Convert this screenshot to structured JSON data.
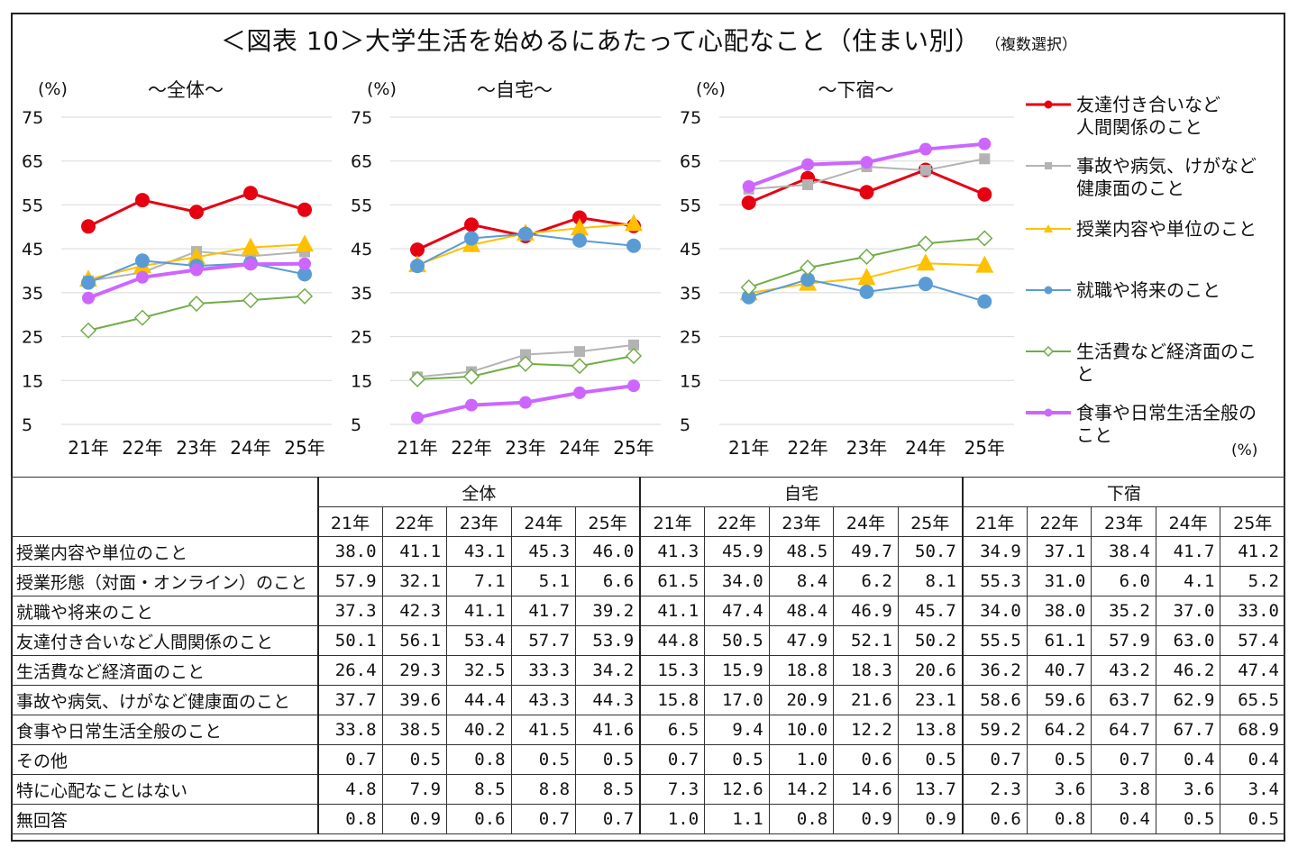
{
  "title": "＜図表 10＞大学生活を始めるにあたって心配なこと（住まい別）",
  "subtitle": "（複数選択）",
  "chart_data": [
    {
      "type": "line",
      "title": "～全体～",
      "ylabel": "(%)",
      "ylim": [
        5,
        75
      ],
      "yticks": [
        75,
        65,
        55,
        45,
        35,
        25,
        15,
        5
      ],
      "categories": [
        "21年",
        "22年",
        "23年",
        "24年",
        "25年"
      ],
      "series": [
        {
          "name": "友達付き合いなど人間関係のこと",
          "values": [
            50.1,
            56.1,
            53.4,
            57.7,
            53.9
          ]
        },
        {
          "name": "事故や病気、けがなど健康面のこと",
          "values": [
            37.7,
            39.6,
            44.4,
            43.3,
            44.3
          ]
        },
        {
          "name": "授業内容や単位のこと",
          "values": [
            38.0,
            41.1,
            43.1,
            45.3,
            46.0
          ]
        },
        {
          "name": "就職や将来のこと",
          "values": [
            37.3,
            42.3,
            41.1,
            41.7,
            39.2
          ]
        },
        {
          "name": "生活費など経済面のこと",
          "values": [
            26.4,
            29.3,
            32.5,
            33.3,
            34.2
          ]
        },
        {
          "name": "食事や日常生活全般のこと",
          "values": [
            33.8,
            38.5,
            40.2,
            41.5,
            41.6
          ]
        }
      ]
    },
    {
      "type": "line",
      "title": "～自宅～",
      "ylabel": "(%)",
      "ylim": [
        5,
        75
      ],
      "yticks": [
        75,
        65,
        55,
        45,
        35,
        25,
        15,
        5
      ],
      "categories": [
        "21年",
        "22年",
        "23年",
        "24年",
        "25年"
      ],
      "series": [
        {
          "name": "友達付き合いなど人間関係のこと",
          "values": [
            44.8,
            50.5,
            47.9,
            52.1,
            50.2
          ]
        },
        {
          "name": "事故や病気、けがなど健康面のこと",
          "values": [
            15.8,
            17.0,
            20.9,
            21.6,
            23.1
          ]
        },
        {
          "name": "授業内容や単位のこと",
          "values": [
            41.3,
            45.9,
            48.5,
            49.7,
            50.7
          ]
        },
        {
          "name": "就職や将来のこと",
          "values": [
            41.1,
            47.4,
            48.4,
            46.9,
            45.7
          ]
        },
        {
          "name": "生活費など経済面のこと",
          "values": [
            15.3,
            15.9,
            18.8,
            18.3,
            20.6
          ]
        },
        {
          "name": "食事や日常生活全般のこと",
          "values": [
            6.5,
            9.4,
            10.0,
            12.2,
            13.8
          ]
        }
      ]
    },
    {
      "type": "line",
      "title": "～下宿～",
      "ylabel": "(%)",
      "ylim": [
        5,
        75
      ],
      "yticks": [
        75,
        65,
        55,
        45,
        35,
        25,
        15,
        5
      ],
      "categories": [
        "21年",
        "22年",
        "23年",
        "24年",
        "25年"
      ],
      "series": [
        {
          "name": "友達付き合いなど人間関係のこと",
          "values": [
            55.5,
            61.1,
            57.9,
            63.0,
            57.4
          ]
        },
        {
          "name": "事故や病気、けがなど健康面のこと",
          "values": [
            58.6,
            59.6,
            63.7,
            62.9,
            65.5
          ]
        },
        {
          "name": "授業内容や単位のこと",
          "values": [
            34.9,
            37.1,
            38.4,
            41.7,
            41.2
          ]
        },
        {
          "name": "就職や将来のこと",
          "values": [
            34.0,
            38.0,
            35.2,
            37.0,
            33.0
          ]
        },
        {
          "name": "生活費など経済面のこと",
          "values": [
            36.2,
            40.7,
            43.2,
            46.2,
            47.4
          ]
        },
        {
          "name": "食事や日常生活全般のこと",
          "values": [
            59.2,
            64.2,
            64.7,
            67.7,
            68.9
          ]
        }
      ]
    }
  ],
  "series_styles": [
    {
      "color": "#e60012",
      "marker": "circle",
      "width": 3
    },
    {
      "color": "#b3b3b3",
      "marker": "square",
      "width": 2
    },
    {
      "color": "#ffc000",
      "marker": "triangle",
      "width": 2
    },
    {
      "color": "#5b9bd5",
      "marker": "circle",
      "width": 2
    },
    {
      "color": "#70ad47",
      "marker": "diamond-open",
      "width": 2
    },
    {
      "color": "#cc66ff",
      "marker": "circle",
      "width": 4
    }
  ],
  "legend": [
    {
      "lines": [
        "友達付き合いなど",
        "人間関係のこと"
      ]
    },
    {
      "lines": [
        "事故や病気、けがなど",
        "健康面のこと"
      ]
    },
    {
      "lines": [
        "授業内容や単位のこと"
      ]
    },
    {
      "lines": [
        "就職や将来のこと"
      ]
    },
    {
      "lines": [
        "生活費など経済面のこ",
        "と"
      ]
    },
    {
      "lines": [
        "食事や日常生活全般の",
        "こと"
      ]
    }
  ],
  "table": {
    "unit": "(%)",
    "groups": [
      "全体",
      "自宅",
      "下宿"
    ],
    "years": [
      "21年",
      "22年",
      "23年",
      "24年",
      "25年"
    ],
    "rows": [
      {
        "label": "授業内容や単位のこと",
        "values": [
          "38.0",
          "41.1",
          "43.1",
          "45.3",
          "46.0",
          "41.3",
          "45.9",
          "48.5",
          "49.7",
          "50.7",
          "34.9",
          "37.1",
          "38.4",
          "41.7",
          "41.2"
        ]
      },
      {
        "label": "授業形態（対面・オンライン）のこと",
        "values": [
          "57.9",
          "32.1",
          "7.1",
          "5.1",
          "6.6",
          "61.5",
          "34.0",
          "8.4",
          "6.2",
          "8.1",
          "55.3",
          "31.0",
          "6.0",
          "4.1",
          "5.2"
        ]
      },
      {
        "label": "就職や将来のこと",
        "values": [
          "37.3",
          "42.3",
          "41.1",
          "41.7",
          "39.2",
          "41.1",
          "47.4",
          "48.4",
          "46.9",
          "45.7",
          "34.0",
          "38.0",
          "35.2",
          "37.0",
          "33.0"
        ]
      },
      {
        "label": "友達付き合いなど人間関係のこと",
        "values": [
          "50.1",
          "56.1",
          "53.4",
          "57.7",
          "53.9",
          "44.8",
          "50.5",
          "47.9",
          "52.1",
          "50.2",
          "55.5",
          "61.1",
          "57.9",
          "63.0",
          "57.4"
        ]
      },
      {
        "label": "生活費など経済面のこと",
        "values": [
          "26.4",
          "29.3",
          "32.5",
          "33.3",
          "34.2",
          "15.3",
          "15.9",
          "18.8",
          "18.3",
          "20.6",
          "36.2",
          "40.7",
          "43.2",
          "46.2",
          "47.4"
        ]
      },
      {
        "label": "事故や病気、けがなど健康面のこと",
        "values": [
          "37.7",
          "39.6",
          "44.4",
          "43.3",
          "44.3",
          "15.8",
          "17.0",
          "20.9",
          "21.6",
          "23.1",
          "58.6",
          "59.6",
          "63.7",
          "62.9",
          "65.5"
        ]
      },
      {
        "label": "食事や日常生活全般のこと",
        "values": [
          "33.8",
          "38.5",
          "40.2",
          "41.5",
          "41.6",
          "6.5",
          "9.4",
          "10.0",
          "12.2",
          "13.8",
          "59.2",
          "64.2",
          "64.7",
          "67.7",
          "68.9"
        ]
      },
      {
        "label": "その他",
        "values": [
          "0.7",
          "0.5",
          "0.8",
          "0.5",
          "0.5",
          "0.7",
          "0.5",
          "1.0",
          "0.6",
          "0.5",
          "0.7",
          "0.5",
          "0.7",
          "0.4",
          "0.4"
        ]
      },
      {
        "label": "特に心配なことはない",
        "values": [
          "4.8",
          "7.9",
          "8.5",
          "8.8",
          "8.5",
          "7.3",
          "12.6",
          "14.2",
          "14.6",
          "13.7",
          "2.3",
          "3.6",
          "3.8",
          "3.6",
          "3.4"
        ]
      },
      {
        "label": "無回答",
        "values": [
          "0.8",
          "0.9",
          "0.6",
          "0.7",
          "0.7",
          "1.0",
          "1.1",
          "0.8",
          "0.9",
          "0.9",
          "0.6",
          "0.8",
          "0.4",
          "0.5",
          "0.5"
        ]
      }
    ]
  }
}
